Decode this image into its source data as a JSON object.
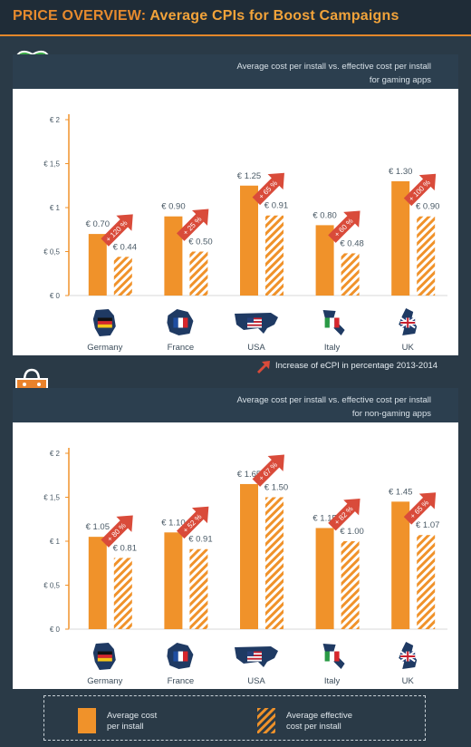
{
  "header": {
    "lead": "PRICE OVERVIEW: ",
    "title": "Average CPIs for Boost Campaigns"
  },
  "colors": {
    "orange": "#f0922a",
    "hatch": "#f0922a",
    "increase_arrow": "#d94b3a",
    "background": "#2a3a47",
    "grid": "#e6e6e6"
  },
  "icons": {
    "gaming": "gamepad-icon",
    "non_gaming": "shopping-bag-icon",
    "arrow": "up-right-arrow-icon",
    "flags": [
      "germany-map-flag-icon",
      "france-map-flag-icon",
      "usa-map-flag-icon",
      "italy-map-flag-icon",
      "uk-map-flag-icon"
    ]
  },
  "increase_note": "Increase of eCPI in percentage 2013-2014",
  "chart_data": [
    {
      "type": "bar",
      "title": "Average cost per install vs. effective cost per install",
      "subtitle": "for gaming apps",
      "categories": [
        "Germany",
        "France",
        "USA",
        "Italy",
        "UK"
      ],
      "y_ticks": [
        "€ 0",
        "€ 0,5",
        "€ 1",
        "€ 1,5",
        "€ 2"
      ],
      "ylim": [
        0,
        2
      ],
      "series": [
        {
          "name": "Average cost per install",
          "values": [
            0.7,
            0.9,
            1.25,
            0.8,
            1.3
          ],
          "labels": [
            "€ 0.70",
            "€ 0.90",
            "€ 1.25",
            "€ 0.80",
            "€ 1.30"
          ]
        },
        {
          "name": "Average effective cost per install",
          "values": [
            0.44,
            0.5,
            0.91,
            0.48,
            0.9
          ],
          "labels": [
            "€ 0.44",
            "€ 0.50",
            "€ 0.91",
            "€ 0.48",
            "€ 0.90"
          ]
        }
      ],
      "increase": [
        "+ 120 %",
        "+ 25 %",
        "+ 65 %",
        "+ 60 %",
        "+ 100 %"
      ],
      "grid": false
    },
    {
      "type": "bar",
      "title": "Average cost per install vs. effective cost per install",
      "subtitle": "for non-gaming apps",
      "categories": [
        "Germany",
        "France",
        "USA",
        "Italy",
        "UK"
      ],
      "y_ticks": [
        "€ 0",
        "€ 0,5",
        "€ 1",
        "€ 1,5",
        "€ 2"
      ],
      "ylim": [
        0,
        2
      ],
      "series": [
        {
          "name": "Average cost per install",
          "values": [
            1.05,
            1.1,
            1.65,
            1.15,
            1.45
          ],
          "labels": [
            "€ 1.05",
            "€ 1.10",
            "€ 1.65",
            "€ 1.15",
            "€ 1.45"
          ]
        },
        {
          "name": "Average effective cost per install",
          "values": [
            0.81,
            0.91,
            1.5,
            1.0,
            1.07
          ],
          "labels": [
            "€ 0.81",
            "€ 0.91",
            "€ 1.50",
            "€ 1.00",
            "€ 1.07"
          ]
        }
      ],
      "increase": [
        "+ 80 %",
        "+ 52 %",
        "+ 67 %",
        "+ 82 %",
        "+ 65 %"
      ],
      "grid": false
    }
  ],
  "legend": {
    "solid_line1": "Average cost",
    "solid_line2": "per install",
    "hatched_line1": "Average effective",
    "hatched_line2": "cost per install"
  }
}
